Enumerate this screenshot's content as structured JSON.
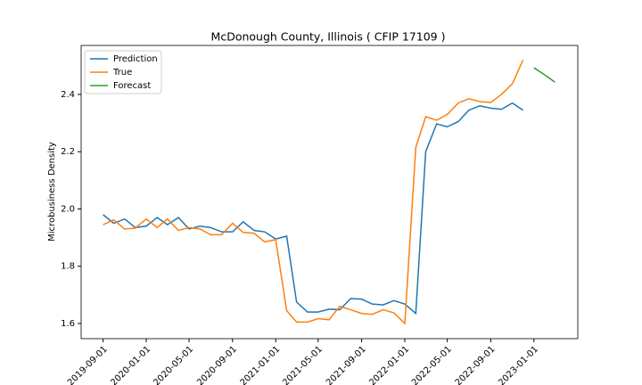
{
  "chart_data": {
    "type": "line",
    "title": "McDonough County, Illinois ( CFIP 17109 )",
    "y_label": "Microbusiness Density",
    "x": [
      "2019-09-01",
      "2019-10-01",
      "2019-11-01",
      "2019-12-01",
      "2020-01-01",
      "2020-02-01",
      "2020-03-01",
      "2020-04-01",
      "2020-05-01",
      "2020-06-01",
      "2020-07-01",
      "2020-08-01",
      "2020-09-01",
      "2020-10-01",
      "2020-11-01",
      "2020-12-01",
      "2021-01-01",
      "2021-02-01",
      "2021-03-01",
      "2021-04-01",
      "2021-05-01",
      "2021-06-01",
      "2021-07-01",
      "2021-08-01",
      "2021-09-01",
      "2021-10-01",
      "2021-11-01",
      "2021-12-01",
      "2022-01-01",
      "2022-02-01",
      "2022-03-01",
      "2022-04-01",
      "2022-05-01",
      "2022-06-01",
      "2022-07-01",
      "2022-08-01",
      "2022-09-01",
      "2022-10-01",
      "2022-11-01",
      "2022-12-01",
      "2023-01-01",
      "2023-02-01",
      "2023-03-01"
    ],
    "series": [
      {
        "name": "Prediction",
        "color": "#1f77b4",
        "values": [
          1.98,
          1.95,
          1.965,
          1.935,
          1.94,
          1.97,
          1.945,
          1.97,
          1.93,
          1.94,
          1.935,
          1.92,
          1.92,
          1.955,
          1.925,
          1.92,
          1.895,
          1.905,
          1.675,
          1.64,
          1.64,
          1.65,
          1.648,
          1.687,
          1.685,
          1.668,
          1.665,
          1.68,
          1.668,
          1.635,
          2.2,
          2.297,
          2.287,
          2.305,
          2.345,
          2.36,
          2.352,
          2.348,
          2.37,
          2.345,
          null,
          null,
          null
        ]
      },
      {
        "name": "True",
        "color": "#ff7f0e",
        "values": [
          1.945,
          1.962,
          1.93,
          1.933,
          1.965,
          1.935,
          1.965,
          1.925,
          1.935,
          1.93,
          1.91,
          1.91,
          1.95,
          1.918,
          1.915,
          1.885,
          1.893,
          1.645,
          1.605,
          1.605,
          1.617,
          1.613,
          1.66,
          1.648,
          1.635,
          1.632,
          1.648,
          1.637,
          1.6,
          2.215,
          2.322,
          2.31,
          2.33,
          2.37,
          2.385,
          2.375,
          2.372,
          2.4,
          2.437,
          2.52,
          null,
          null,
          null
        ]
      },
      {
        "name": "Forecast",
        "color": "#2ca02c",
        "values": [
          null,
          null,
          null,
          null,
          null,
          null,
          null,
          null,
          null,
          null,
          null,
          null,
          null,
          null,
          null,
          null,
          null,
          null,
          null,
          null,
          null,
          null,
          null,
          null,
          null,
          null,
          null,
          null,
          null,
          null,
          null,
          null,
          null,
          null,
          null,
          null,
          null,
          null,
          null,
          null,
          2.493,
          2.468,
          2.443
        ]
      }
    ],
    "xlim": [
      "2019-07-01",
      "2023-05-05"
    ],
    "xticks": [
      "2019-09-01",
      "2020-01-01",
      "2020-05-01",
      "2020-09-01",
      "2021-01-01",
      "2021-05-01",
      "2021-09-01",
      "2022-01-01",
      "2022-05-01",
      "2022-09-01",
      "2023-01-01"
    ],
    "ylim": [
      1.547,
      2.571
    ],
    "yticks": [
      1.6,
      1.8,
      {
        "value": 2,
        "label": "2.0"
      },
      2.2,
      2.4
    ],
    "legend": "upper left"
  }
}
